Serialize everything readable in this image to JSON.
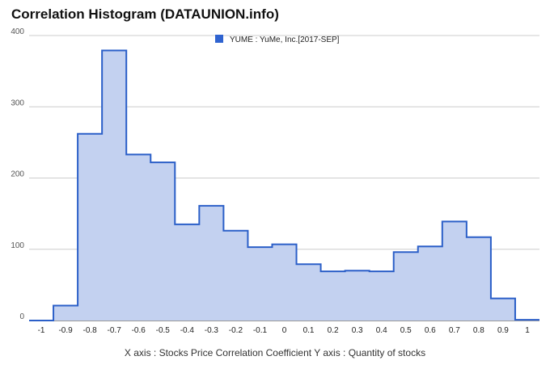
{
  "title": "Correlation Histogram (DATAUNION.info)",
  "caption": "X axis : Stocks Price Correlation Coefficient  Y axis : Quantity of stocks",
  "colors": {
    "line": "#2b5fc8",
    "fill": "#c3d1f0",
    "grid": "#cccccc",
    "legend": "#2f63d0"
  },
  "chart_data": {
    "type": "area",
    "legend_position": "top",
    "grid": true,
    "xlim": [
      -1.05,
      1.05
    ],
    "ylim": [
      0,
      400
    ],
    "x_ticks": [
      "-1",
      "-0.9",
      "-0.8",
      "-0.7",
      "-0.6",
      "-0.5",
      "-0.4",
      "-0.3",
      "-0.2",
      "-0.1",
      "0",
      "0.1",
      "0.2",
      "0.3",
      "0.4",
      "0.5",
      "0.6",
      "0.7",
      "0.8",
      "0.9",
      "1"
    ],
    "y_ticks": [
      "0",
      "100",
      "200",
      "300",
      "400"
    ],
    "series": [
      {
        "name": "YUME : YuMe, Inc.[2017-SEP]",
        "bin_width": 0.1,
        "x": [
          -1,
          -0.9,
          -0.8,
          -0.7,
          -0.6,
          -0.5,
          -0.4,
          -0.3,
          -0.2,
          -0.1,
          0,
          0.1,
          0.2,
          0.3,
          0.4,
          0.5,
          0.6,
          0.7,
          0.8,
          0.9,
          1
        ],
        "values": [
          0,
          21,
          262,
          379,
          233,
          222,
          135,
          161,
          126,
          103,
          107,
          79,
          69,
          70,
          69,
          96,
          104,
          139,
          117,
          31,
          1
        ]
      }
    ]
  }
}
